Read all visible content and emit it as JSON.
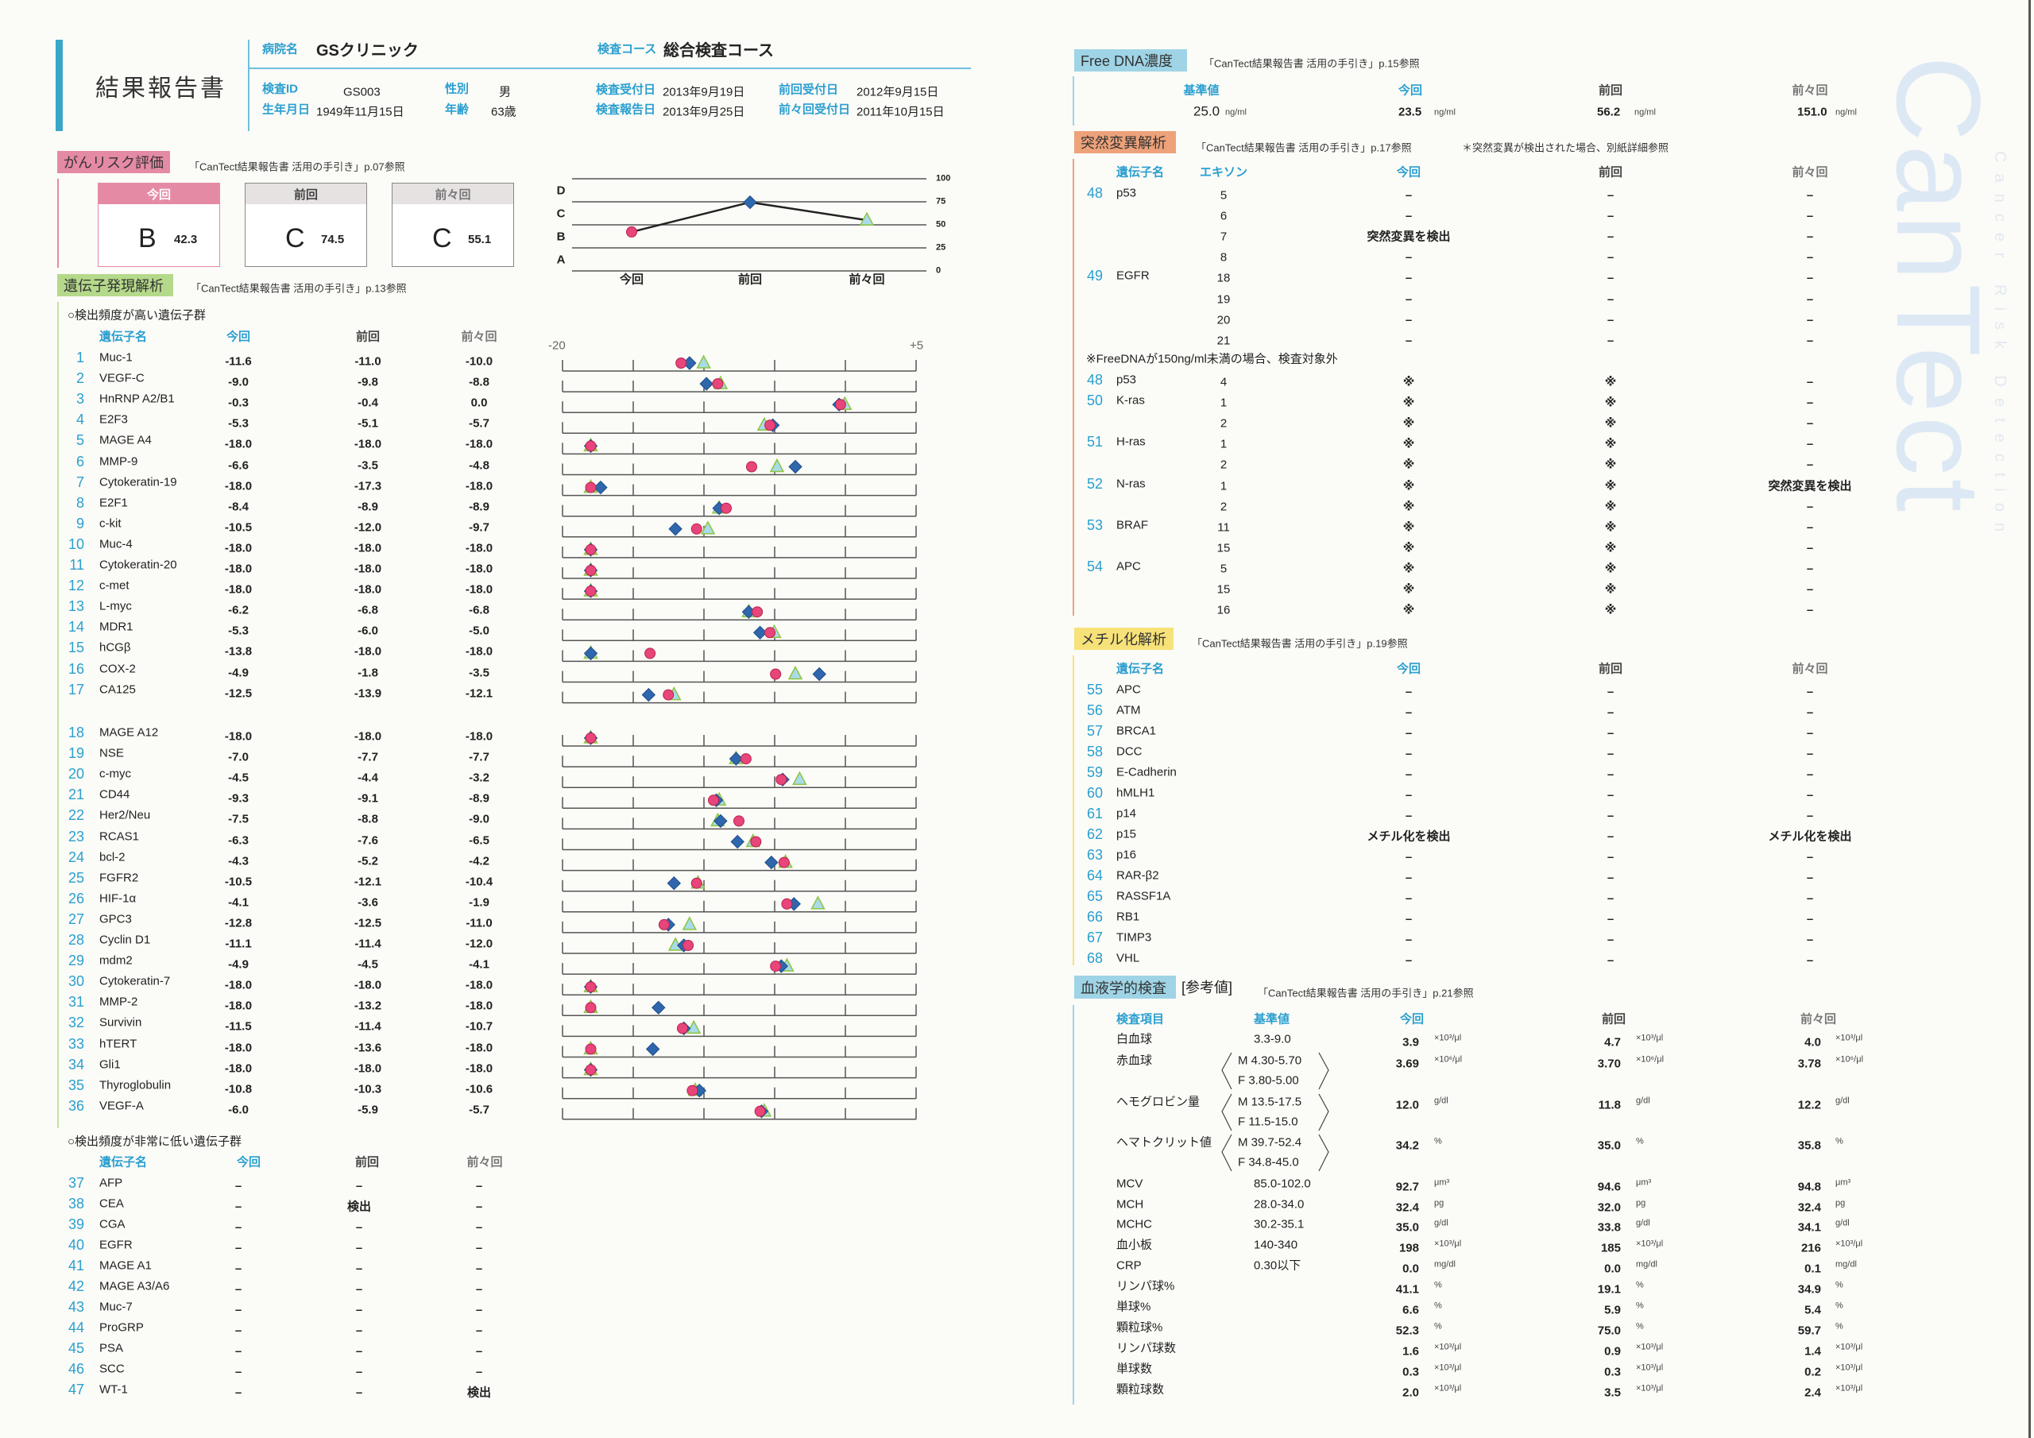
{
  "header": {
    "title": "結果報告書",
    "hospital_label": "病院名",
    "hospital": "GSクリニック",
    "course_label": "検査コース",
    "course": "総合検査コース",
    "id_label": "検査ID",
    "id": "GS003",
    "sex_label": "性別",
    "sex": "男",
    "birth_label": "生年月日",
    "birth": "1949年11月15日",
    "age_label": "年齢",
    "age": "63歳",
    "recv_label": "検査受付日",
    "recv": "2013年9月19日",
    "report_label": "検査報告日",
    "report": "2013年9月25日",
    "prev_recv_label": "前回受付日",
    "prev_recv": "2012年9月15日",
    "prev2_recv_label": "前々回受付日",
    "prev2_recv": "2011年10月15日"
  },
  "risk": {
    "title": "がんリスク評価",
    "ref": "「CanTect結果報告書 活用の手引き」p.07参照",
    "cards": [
      {
        "label": "今回",
        "grade": "B",
        "score": "42.3"
      },
      {
        "label": "前回",
        "grade": "C",
        "score": "74.5"
      },
      {
        "label": "前々回",
        "grade": "C",
        "score": "55.1"
      }
    ]
  },
  "expression": {
    "title": "遺伝子発現解析",
    "ref": "「CanTect結果報告書 活用の手引き」p.13参照",
    "high": {
      "title": "○検出頻度が高い遺伝子群",
      "headers": [
        "遺伝子名",
        "今回",
        "前回",
        "前々回"
      ],
      "rows": [
        {
          "no": "1",
          "name": "Muc-1",
          "cur": "-11.6",
          "prev": "-11.0",
          "prev2": "-10.0"
        },
        {
          "no": "2",
          "name": "VEGF-C",
          "cur": "-9.0",
          "prev": "-9.8",
          "prev2": "-8.8"
        },
        {
          "no": "3",
          "name": "HnRNP A2/B1",
          "cur": "-0.3",
          "prev": "-0.4",
          "prev2": "0.0"
        },
        {
          "no": "4",
          "name": "E2F3",
          "cur": "-5.3",
          "prev": "-5.1",
          "prev2": "-5.7"
        },
        {
          "no": "5",
          "name": "MAGE A4",
          "cur": "-18.0",
          "prev": "-18.0",
          "prev2": "-18.0"
        },
        {
          "no": "6",
          "name": "MMP-9",
          "cur": "-6.6",
          "prev": "-3.5",
          "prev2": "-4.8"
        },
        {
          "no": "7",
          "name": "Cytokeratin-19",
          "cur": "-18.0",
          "prev": "-17.3",
          "prev2": "-18.0"
        },
        {
          "no": "8",
          "name": "E2F1",
          "cur": "-8.4",
          "prev": "-8.9",
          "prev2": "-8.9"
        },
        {
          "no": "9",
          "name": "c-kit",
          "cur": "-10.5",
          "prev": "-12.0",
          "prev2": "-9.7"
        },
        {
          "no": "10",
          "name": "Muc-4",
          "cur": "-18.0",
          "prev": "-18.0",
          "prev2": "-18.0"
        },
        {
          "no": "11",
          "name": "Cytokeratin-20",
          "cur": "-18.0",
          "prev": "-18.0",
          "prev2": "-18.0"
        },
        {
          "no": "12",
          "name": "c-met",
          "cur": "-18.0",
          "prev": "-18.0",
          "prev2": "-18.0"
        },
        {
          "no": "13",
          "name": "L-myc",
          "cur": "-6.2",
          "prev": "-6.8",
          "prev2": "-6.8"
        },
        {
          "no": "14",
          "name": "MDR1",
          "cur": "-5.3",
          "prev": "-6.0",
          "prev2": "-5.0"
        },
        {
          "no": "15",
          "name": "hCGβ",
          "cur": "-13.8",
          "prev": "-18.0",
          "prev2": "-18.0"
        },
        {
          "no": "16",
          "name": "COX-2",
          "cur": "-4.9",
          "prev": "-1.8",
          "prev2": "-3.5"
        },
        {
          "no": "17",
          "name": "CA125",
          "cur": "-12.5",
          "prev": "-13.9",
          "prev2": "-12.1"
        },
        {
          "no": "18",
          "name": "MAGE A12",
          "cur": "-18.0",
          "prev": "-18.0",
          "prev2": "-18.0"
        },
        {
          "no": "19",
          "name": "NSE",
          "cur": "-7.0",
          "prev": "-7.7",
          "prev2": "-7.7"
        },
        {
          "no": "20",
          "name": "c-myc",
          "cur": "-4.5",
          "prev": "-4.4",
          "prev2": "-3.2"
        },
        {
          "no": "21",
          "name": "CD44",
          "cur": "-9.3",
          "prev": "-9.1",
          "prev2": "-8.9"
        },
        {
          "no": "22",
          "name": "Her2/Neu",
          "cur": "-7.5",
          "prev": "-8.8",
          "prev2": "-9.0"
        },
        {
          "no": "23",
          "name": "RCAS1",
          "cur": "-6.3",
          "prev": "-7.6",
          "prev2": "-6.5"
        },
        {
          "no": "24",
          "name": "bcl-2",
          "cur": "-4.3",
          "prev": "-5.2",
          "prev2": "-4.2"
        },
        {
          "no": "25",
          "name": "FGFR2",
          "cur": "-10.5",
          "prev": "-12.1",
          "prev2": "-10.4"
        },
        {
          "no": "26",
          "name": "HIF-1α",
          "cur": "-4.1",
          "prev": "-3.6",
          "prev2": "-1.9"
        },
        {
          "no": "27",
          "name": "GPC3",
          "cur": "-12.8",
          "prev": "-12.5",
          "prev2": "-11.0"
        },
        {
          "no": "28",
          "name": "Cyclin D1",
          "cur": "-11.1",
          "prev": "-11.4",
          "prev2": "-12.0"
        },
        {
          "no": "29",
          "name": "mdm2",
          "cur": "-4.9",
          "prev": "-4.5",
          "prev2": "-4.1"
        },
        {
          "no": "30",
          "name": "Cytokeratin-7",
          "cur": "-18.0",
          "prev": "-18.0",
          "prev2": "-18.0"
        },
        {
          "no": "31",
          "name": "MMP-2",
          "cur": "-18.0",
          "prev": "-13.2",
          "prev2": "-18.0"
        },
        {
          "no": "32",
          "name": "Survivin",
          "cur": "-11.5",
          "prev": "-11.4",
          "prev2": "-10.7"
        },
        {
          "no": "33",
          "name": "hTERT",
          "cur": "-18.0",
          "prev": "-13.6",
          "prev2": "-18.0"
        },
        {
          "no": "34",
          "name": "Gli1",
          "cur": "-18.0",
          "prev": "-18.0",
          "prev2": "-18.0"
        },
        {
          "no": "35",
          "name": "Thyroglobulin",
          "cur": "-10.8",
          "prev": "-10.3",
          "prev2": "-10.6"
        },
        {
          "no": "36",
          "name": "VEGF-A",
          "cur": "-6.0",
          "prev": "-5.9",
          "prev2": "-5.7"
        }
      ]
    },
    "low": {
      "title": "○検出頻度が非常に低い遺伝子群",
      "headers": [
        "遺伝子名",
        "今回",
        "前回",
        "前々回"
      ],
      "rows": [
        {
          "no": "37",
          "name": "AFP",
          "cur": "–",
          "prev": "–",
          "prev2": "–"
        },
        {
          "no": "38",
          "name": "CEA",
          "cur": "–",
          "prev": "検出",
          "prev2": "–"
        },
        {
          "no": "39",
          "name": "CGA",
          "cur": "–",
          "prev": "–",
          "prev2": "–"
        },
        {
          "no": "40",
          "name": "EGFR",
          "cur": "–",
          "prev": "–",
          "prev2": "–"
        },
        {
          "no": "41",
          "name": "MAGE A1",
          "cur": "–",
          "prev": "–",
          "prev2": "–"
        },
        {
          "no": "42",
          "name": "MAGE A3/A6",
          "cur": "–",
          "prev": "–",
          "prev2": "–"
        },
        {
          "no": "43",
          "name": "Muc-7",
          "cur": "–",
          "prev": "–",
          "prev2": "–"
        },
        {
          "no": "44",
          "name": "ProGRP",
          "cur": "–",
          "prev": "–",
          "prev2": "–"
        },
        {
          "no": "45",
          "name": "PSA",
          "cur": "–",
          "prev": "–",
          "prev2": "–"
        },
        {
          "no": "46",
          "name": "SCC",
          "cur": "–",
          "prev": "–",
          "prev2": "–"
        },
        {
          "no": "47",
          "name": "WT-1",
          "cur": "–",
          "prev": "–",
          "prev2": "検出"
        }
      ]
    }
  },
  "chart_data": [
    {
      "type": "line",
      "title": "がんリスク評価",
      "categories": [
        "今回",
        "前回",
        "前々回"
      ],
      "values": [
        42.3,
        74.5,
        55.1
      ],
      "ylim": [
        0,
        100
      ],
      "yticks": [
        "0",
        "25",
        "50",
        "75",
        "100"
      ],
      "bands": [
        "A",
        "B",
        "C",
        "D"
      ],
      "grid": true
    },
    {
      "type": "scatter",
      "title": "遺伝子発現解析",
      "xlim": [
        -20,
        5
      ],
      "xtick_labels": [
        "-20",
        "+5"
      ],
      "grid": false,
      "legend": "none",
      "series": [
        {
          "name": "今回",
          "marker": "circle",
          "color": "#e8457a",
          "values": [
            -11.6,
            -9.0,
            -0.3,
            -5.3,
            -18.0,
            -6.6,
            -18.0,
            -8.4,
            -10.5,
            -18.0,
            -18.0,
            -18.0,
            -6.2,
            -5.3,
            -13.8,
            -4.9,
            -12.5,
            -18.0,
            -7.0,
            -4.5,
            -9.3,
            -7.5,
            -6.3,
            -4.3,
            -10.5,
            -4.1,
            -12.8,
            -11.1,
            -4.9,
            -18.0,
            -18.0,
            -11.5,
            -18.0,
            -18.0,
            -10.8,
            -6.0
          ]
        },
        {
          "name": "前回",
          "marker": "diamond",
          "color": "#2f67ad",
          "values": [
            -11.0,
            -9.8,
            -0.4,
            -5.1,
            -18.0,
            -3.5,
            -17.3,
            -8.9,
            -12.0,
            -18.0,
            -18.0,
            -18.0,
            -6.8,
            -6.0,
            -18.0,
            -1.8,
            -13.9,
            -18.0,
            -7.7,
            -4.4,
            -9.1,
            -8.8,
            -7.6,
            -5.2,
            -12.1,
            -3.6,
            -12.5,
            -11.4,
            -4.5,
            -18.0,
            -13.2,
            -11.4,
            -13.6,
            -18.0,
            -10.3,
            -5.9
          ]
        },
        {
          "name": "前々回",
          "marker": "triangle",
          "color": "#a9dbe9",
          "values": [
            -10.0,
            -8.8,
            0.0,
            -5.7,
            -18.0,
            -4.8,
            -18.0,
            -8.9,
            -9.7,
            -18.0,
            -18.0,
            -18.0,
            -6.8,
            -5.0,
            -18.0,
            -3.5,
            -12.1,
            -18.0,
            -7.7,
            -3.2,
            -8.9,
            -9.0,
            -6.5,
            -4.2,
            -10.4,
            -1.9,
            -11.0,
            -12.0,
            -4.1,
            -18.0,
            -18.0,
            -10.7,
            -18.0,
            -18.0,
            -10.6,
            -5.7
          ]
        }
      ]
    }
  ],
  "free_dna": {
    "title": "Free DNA濃度",
    "ref": "「CanTect結果報告書 活用の手引き」p.15参照",
    "headers": [
      "基準値",
      "今回",
      "前回",
      "前々回"
    ],
    "ref_value": "25.0",
    "cur": "23.5",
    "prev": "56.2",
    "prev2": "151.0",
    "unit": "ng/ml"
  },
  "mutation": {
    "title": "突然変異解析",
    "ref": "「CanTect結果報告書 活用の手引き」p.17参照",
    "note": "＊突然変異が検出された場合、別紙詳細参照",
    "headers": [
      "遺伝子名",
      "エキソン",
      "今回",
      "前回",
      "前々回"
    ],
    "rows1": [
      {
        "no": "48",
        "name": "p53",
        "exon": "5",
        "cur": "–",
        "prev": "–",
        "prev2": "–"
      },
      {
        "no": "",
        "name": "",
        "exon": "6",
        "cur": "–",
        "prev": "–",
        "prev2": "–"
      },
      {
        "no": "",
        "name": "",
        "exon": "7",
        "cur": "突然変異を検出",
        "prev": "–",
        "prev2": "–"
      },
      {
        "no": "",
        "name": "",
        "exon": "8",
        "cur": "–",
        "prev": "–",
        "prev2": "–"
      },
      {
        "no": "49",
        "name": "EGFR",
        "exon": "18",
        "cur": "–",
        "prev": "–",
        "prev2": "–"
      },
      {
        "no": "",
        "name": "",
        "exon": "19",
        "cur": "–",
        "prev": "–",
        "prev2": "–"
      },
      {
        "no": "",
        "name": "",
        "exon": "20",
        "cur": "–",
        "prev": "–",
        "prev2": "–"
      },
      {
        "no": "",
        "name": "",
        "exon": "21",
        "cur": "–",
        "prev": "–",
        "prev2": "–"
      }
    ],
    "subnote": "※FreeDNAが150ng/ml未満の場合、検査対象外",
    "rows2": [
      {
        "no": "48",
        "name": "p53",
        "exon": "4",
        "cur": "※",
        "prev": "※",
        "prev2": "–"
      },
      {
        "no": "50",
        "name": "K-ras",
        "exon": "1",
        "cur": "※",
        "prev": "※",
        "prev2": "–"
      },
      {
        "no": "",
        "name": "",
        "exon": "2",
        "cur": "※",
        "prev": "※",
        "prev2": "–"
      },
      {
        "no": "51",
        "name": "H-ras",
        "exon": "1",
        "cur": "※",
        "prev": "※",
        "prev2": "–"
      },
      {
        "no": "",
        "name": "",
        "exon": "2",
        "cur": "※",
        "prev": "※",
        "prev2": "–"
      },
      {
        "no": "52",
        "name": "N-ras",
        "exon": "1",
        "cur": "※",
        "prev": "※",
        "prev2": "突然変異を検出"
      },
      {
        "no": "",
        "name": "",
        "exon": "2",
        "cur": "※",
        "prev": "※",
        "prev2": "–"
      },
      {
        "no": "53",
        "name": "BRAF",
        "exon": "11",
        "cur": "※",
        "prev": "※",
        "prev2": "–"
      },
      {
        "no": "",
        "name": "",
        "exon": "15",
        "cur": "※",
        "prev": "※",
        "prev2": "–"
      },
      {
        "no": "54",
        "name": "APC",
        "exon": "5",
        "cur": "※",
        "prev": "※",
        "prev2": "–"
      },
      {
        "no": "",
        "name": "",
        "exon": "15",
        "cur": "※",
        "prev": "※",
        "prev2": "–"
      },
      {
        "no": "",
        "name": "",
        "exon": "16",
        "cur": "※",
        "prev": "※",
        "prev2": "–"
      }
    ]
  },
  "methylation": {
    "title": "メチル化解析",
    "ref": "「CanTect結果報告書 活用の手引き」p.19参照",
    "headers": [
      "遺伝子名",
      "今回",
      "前回",
      "前々回"
    ],
    "rows": [
      {
        "no": "55",
        "name": "APC",
        "cur": "–",
        "prev": "–",
        "prev2": "–"
      },
      {
        "no": "56",
        "name": "ATM",
        "cur": "–",
        "prev": "–",
        "prev2": "–"
      },
      {
        "no": "57",
        "name": "BRCA1",
        "cur": "–",
        "prev": "–",
        "prev2": "–"
      },
      {
        "no": "58",
        "name": "DCC",
        "cur": "–",
        "prev": "–",
        "prev2": "–"
      },
      {
        "no": "59",
        "name": "E-Cadherin",
        "cur": "–",
        "prev": "–",
        "prev2": "–"
      },
      {
        "no": "60",
        "name": "hMLH1",
        "cur": "–",
        "prev": "–",
        "prev2": "–"
      },
      {
        "no": "61",
        "name": "p14",
        "cur": "–",
        "prev": "–",
        "prev2": "–"
      },
      {
        "no": "62",
        "name": "p15",
        "cur": "メチル化を検出",
        "prev": "–",
        "prev2": "メチル化を検出"
      },
      {
        "no": "63",
        "name": "p16",
        "cur": "–",
        "prev": "–",
        "prev2": "–"
      },
      {
        "no": "64",
        "name": "RAR-β2",
        "cur": "–",
        "prev": "–",
        "prev2": "–"
      },
      {
        "no": "65",
        "name": "RASSF1A",
        "cur": "–",
        "prev": "–",
        "prev2": "–"
      },
      {
        "no": "66",
        "name": "RB1",
        "cur": "–",
        "prev": "–",
        "prev2": "–"
      },
      {
        "no": "67",
        "name": "TIMP3",
        "cur": "–",
        "prev": "–",
        "prev2": "–"
      },
      {
        "no": "68",
        "name": "VHL",
        "cur": "–",
        "prev": "–",
        "prev2": "–"
      }
    ]
  },
  "blood": {
    "title": "血液学的検査",
    "subtitle": "[参考値]",
    "ref": "「CanTect結果報告書 活用の手引き」p.21参照",
    "headers": [
      "検査項目",
      "基準値",
      "今回",
      "前回",
      "前々回"
    ],
    "rows": [
      {
        "item": "白血球",
        "ref": "3.3-9.0",
        "cur": "3.9",
        "prev": "4.7",
        "prev2": "4.0",
        "unit": "×10³/μl"
      },
      {
        "item": "赤血球",
        "ref": "M 4.30-5.70",
        "ref_f": "F 3.80-5.00",
        "cur": "3.69",
        "prev": "3.70",
        "prev2": "3.78",
        "unit": "×10⁶/μl"
      },
      {
        "item": "ヘモグロビン量",
        "ref": "M 13.5-17.5",
        "ref_f": "F 11.5-15.0",
        "cur": "12.0",
        "prev": "11.8",
        "prev2": "12.2",
        "unit": "g/dl"
      },
      {
        "item": "ヘマトクリット値",
        "ref": "M 39.7-52.4",
        "ref_f": "F 34.8-45.0",
        "cur": "34.2",
        "prev": "35.0",
        "prev2": "35.8",
        "unit": "%"
      },
      {
        "item": "MCV",
        "ref": "85.0-102.0",
        "cur": "92.7",
        "prev": "94.6",
        "prev2": "94.8",
        "unit": "μm³"
      },
      {
        "item": "MCH",
        "ref": "28.0-34.0",
        "cur": "32.4",
        "prev": "32.0",
        "prev2": "32.4",
        "unit": "pg"
      },
      {
        "item": "MCHC",
        "ref": "30.2-35.1",
        "cur": "35.0",
        "prev": "33.8",
        "prev2": "34.1",
        "unit": "g/dl"
      },
      {
        "item": "血小板",
        "ref": "140-340",
        "cur": "198",
        "prev": "185",
        "prev2": "216",
        "unit": "×10³/μl"
      },
      {
        "item": "CRP",
        "ref": "0.30以下",
        "cur": "0.0",
        "prev": "0.0",
        "prev2": "0.1",
        "unit": "mg/dl"
      },
      {
        "item": "リンパ球%",
        "ref": "",
        "cur": "41.1",
        "prev": "19.1",
        "prev2": "34.9",
        "unit": "%"
      },
      {
        "item": "単球%",
        "ref": "",
        "cur": "6.6",
        "prev": "5.9",
        "prev2": "5.4",
        "unit": "%"
      },
      {
        "item": "顆粒球%",
        "ref": "",
        "cur": "52.3",
        "prev": "75.0",
        "prev2": "59.7",
        "unit": "%"
      },
      {
        "item": "リンパ球数",
        "ref": "",
        "cur": "1.6",
        "prev": "0.9",
        "prev2": "1.4",
        "unit": "×10³/μl"
      },
      {
        "item": "単球数",
        "ref": "",
        "cur": "0.3",
        "prev": "0.3",
        "prev2": "0.2",
        "unit": "×10³/μl"
      },
      {
        "item": "顆粒球数",
        "ref": "",
        "cur": "2.0",
        "prev": "3.5",
        "prev2": "2.4",
        "unit": "×10³/μl"
      }
    ]
  },
  "watermark": {
    "logo": "CanTect",
    "tagline": "Cancer Risk Detection"
  },
  "colors": {
    "accent_blue": "#2a9fd0",
    "pink": "#e58aa5",
    "green": "#b5d98a",
    "orange": "#eea27a",
    "yellow": "#f7e27a",
    "lightblue": "#9fd4e6"
  }
}
